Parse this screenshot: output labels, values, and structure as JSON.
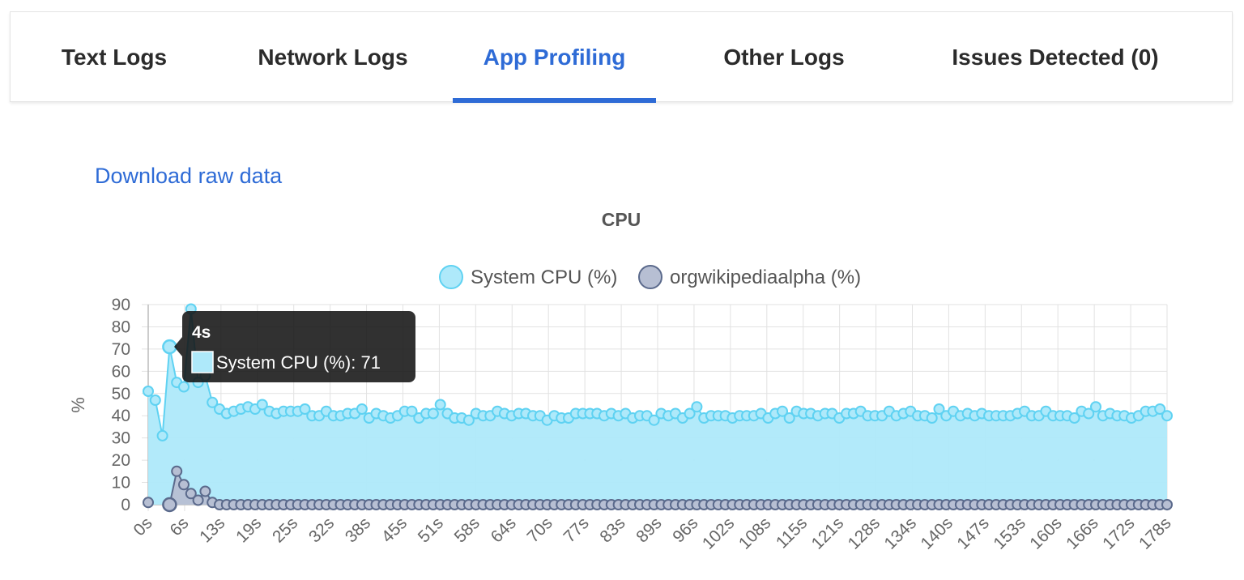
{
  "tabs": [
    {
      "label": "Text Logs",
      "active": false
    },
    {
      "label": "Network Logs",
      "active": false
    },
    {
      "label": "App Profiling",
      "active": true
    },
    {
      "label": "Other Logs",
      "active": false
    },
    {
      "label": "Issues Detected (0)",
      "active": false
    }
  ],
  "download_label": "Download raw data",
  "colors": {
    "accent": "#2e6bd6",
    "system_fill": "#aee9fa",
    "system_line": "#5fd2f2",
    "app_fill": "#b7bfd3",
    "app_line": "#5b6a8c"
  },
  "chart_data": {
    "type": "area",
    "title": "CPU",
    "xlabel": "",
    "ylabel": "%",
    "ylim": [
      0,
      90
    ],
    "yticks": [
      0,
      10,
      20,
      30,
      40,
      50,
      60,
      70,
      80,
      90
    ],
    "x_tick_labels": [
      "0s",
      "6s",
      "13s",
      "19s",
      "25s",
      "32s",
      "38s",
      "45s",
      "51s",
      "58s",
      "64s",
      "70s",
      "77s",
      "83s",
      "89s",
      "96s",
      "102s",
      "108s",
      "115s",
      "121s",
      "128s",
      "134s",
      "140s",
      "147s",
      "153s",
      "160s",
      "166s",
      "172s",
      "178s"
    ],
    "grid": true,
    "legend": "top",
    "series": [
      {
        "name": "System CPU (%)",
        "values": [
          51,
          47,
          31,
          71,
          55,
          53,
          88,
          55,
          58,
          46,
          43,
          41,
          42,
          43,
          44,
          43,
          45,
          42,
          41,
          42,
          42,
          42,
          43,
          40,
          40,
          42,
          40,
          40,
          41,
          41,
          43,
          39,
          41,
          40,
          39,
          40,
          42,
          42,
          39,
          41,
          41,
          45,
          41,
          39,
          39,
          38,
          41,
          40,
          40,
          42,
          41,
          40,
          41,
          41,
          40,
          40,
          38,
          40,
          39,
          39,
          41,
          41,
          41,
          41,
          40,
          41,
          40,
          41,
          39,
          40,
          40,
          38,
          41,
          40,
          41,
          39,
          41,
          44,
          39,
          40,
          40,
          40,
          39,
          40,
          40,
          40,
          41,
          39,
          41,
          42,
          39,
          42,
          41,
          41,
          40,
          41,
          41,
          39,
          41,
          41,
          42,
          40,
          40,
          40,
          42,
          40,
          41,
          42,
          40,
          40,
          39,
          43,
          40,
          42,
          40,
          41,
          40,
          41,
          40,
          40,
          40,
          40,
          41,
          42,
          40,
          40,
          42,
          40,
          40,
          40,
          39,
          42,
          41,
          44,
          40,
          41,
          40,
          40,
          39,
          40,
          42,
          42,
          43,
          40
        ]
      },
      {
        "name": "orgwikipediaalpha (%)",
        "values": [
          1,
          null,
          null,
          0,
          15,
          9,
          5,
          2,
          6,
          1,
          0,
          0,
          0,
          0,
          0,
          0,
          0,
          0,
          0,
          0,
          0,
          0,
          0,
          0,
          0,
          0,
          0,
          0,
          0,
          0,
          0,
          0,
          0,
          0,
          0,
          0,
          0,
          0,
          0,
          0,
          0,
          0,
          0,
          0,
          0,
          0,
          0,
          0,
          0,
          0,
          0,
          0,
          0,
          0,
          0,
          0,
          0,
          0,
          0,
          0,
          0,
          0,
          0,
          0,
          0,
          0,
          0,
          0,
          0,
          0,
          0,
          0,
          0,
          0,
          0,
          0,
          0,
          0,
          0,
          0,
          0,
          0,
          0,
          0,
          0,
          0,
          0,
          0,
          0,
          0,
          0,
          0,
          0,
          0,
          0,
          0,
          0,
          0,
          0,
          0,
          0,
          0,
          0,
          0,
          0,
          0,
          0,
          0,
          0,
          0,
          0,
          0,
          0,
          0,
          0,
          0,
          0,
          0,
          0,
          0,
          0,
          0,
          0,
          0,
          0,
          0,
          0,
          0,
          0,
          0,
          0,
          0,
          0,
          0,
          0,
          0,
          0,
          0,
          0,
          0,
          0,
          0,
          0,
          0
        ]
      }
    ],
    "tooltip": {
      "title": "4s",
      "series": "System CPU (%)",
      "value": 71,
      "index": 3,
      "body": "System CPU (%): 71"
    }
  }
}
